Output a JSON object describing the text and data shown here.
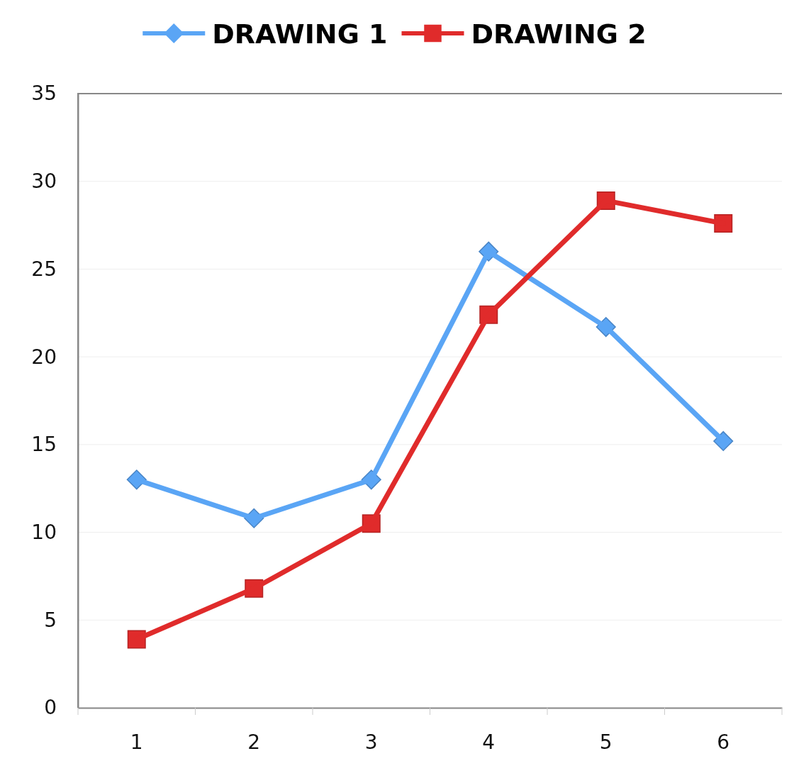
{
  "chart_data": {
    "type": "line",
    "categories": [
      "1",
      "2",
      "3",
      "4",
      "5",
      "6"
    ],
    "series": [
      {
        "name": "DRAWING 1",
        "color": "#5aa5f5",
        "marker": "diamond",
        "values": [
          13,
          10.8,
          13,
          26,
          21.7,
          15.2
        ]
      },
      {
        "name": "DRAWING 2",
        "color": "#e02b2b",
        "marker": "square",
        "values": [
          3.9,
          6.8,
          10.5,
          22.4,
          28.9,
          27.6
        ]
      }
    ],
    "ylim": [
      0,
      35
    ],
    "yticks": [
      0,
      5,
      10,
      15,
      20,
      25,
      30,
      35
    ],
    "grid": "y",
    "legend": "top",
    "line_style": "solid"
  }
}
